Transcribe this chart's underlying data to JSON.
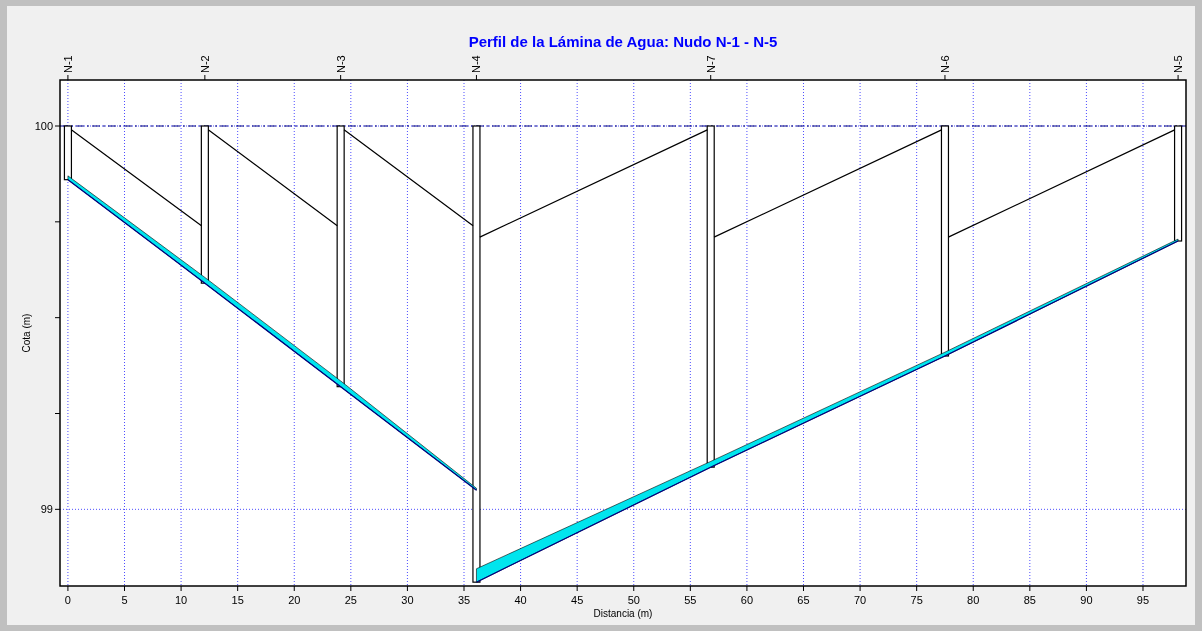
{
  "chart_data": {
    "type": "line",
    "title": "Perfil de la Lámina de Agua:  Nudo N-1 - N-5",
    "xlabel": "Distancia (m)",
    "ylabel": "Cota (m)",
    "xlim": [
      -0.7,
      98.8
    ],
    "ylim": [
      98.8,
      100.12
    ],
    "xticks": [
      0,
      5,
      10,
      15,
      20,
      25,
      30,
      35,
      40,
      45,
      50,
      55,
      60,
      65,
      70,
      75,
      80,
      85,
      90,
      95
    ],
    "yticks": [
      99,
      {
        "value": 99.25,
        "label": null
      },
      {
        "value": 99.5,
        "label": null
      },
      {
        "value": 99.75,
        "label": null
      },
      100
    ],
    "annotations": [
      "N-1",
      "N-2",
      "N-3",
      "N-4",
      "N-7",
      "N-6",
      "N-5"
    ],
    "grid": true,
    "ref_lines": [
      {
        "axis": "y",
        "value": 100,
        "label": null,
        "color": "#000080",
        "line_style": "dashed"
      }
    ],
    "series": [
      {
        "type": "bar",
        "color": "#ffffff",
        "x": [
          0,
          12.1,
          24.1,
          36.1,
          56.8,
          77.5,
          98.1
        ],
        "base": [
          99.86,
          99.59,
          99.32,
          98.81,
          99.11,
          99.4,
          99.7
        ],
        "values": [
          0.14,
          0.41,
          0.68,
          1.19,
          0.89,
          0.6,
          0.3
        ]
      },
      {
        "color": "#000080",
        "x": [
          0,
          12.1,
          24.1,
          36.1
        ],
        "values": [
          99.86,
          99.59,
          99.32,
          99.05
        ],
        "lower": [
          99.86,
          99.59,
          99.32,
          99.05
        ],
        "upper": [
          99.87,
          99.605,
          99.335,
          99.055
        ]
      },
      {
        "color": "#000080",
        "x": [
          36.1,
          56.8,
          77.5,
          98.1
        ],
        "values": [
          98.81,
          99.11,
          99.4,
          99.7
        ],
        "lower": [
          98.81,
          99.11,
          99.4,
          99.7
        ],
        "upper": [
          98.845,
          99.125,
          99.41,
          99.705
        ]
      },
      {
        "color": "#000000",
        "x": [
          0.3,
          11.8,
          12,
          12.4,
          23.8,
          24,
          24.4,
          35.8,
          36,
          36.4,
          56.5,
          57,
          57.1,
          77.2,
          77.5,
          77.8,
          97.8
        ],
        "values": [
          99.99,
          99.74,
          null,
          99.99,
          99.74,
          null,
          99.99,
          99.74,
          null,
          99.71,
          99.99,
          null,
          99.71,
          99.99,
          null,
          99.71,
          99.99
        ]
      }
    ]
  }
}
